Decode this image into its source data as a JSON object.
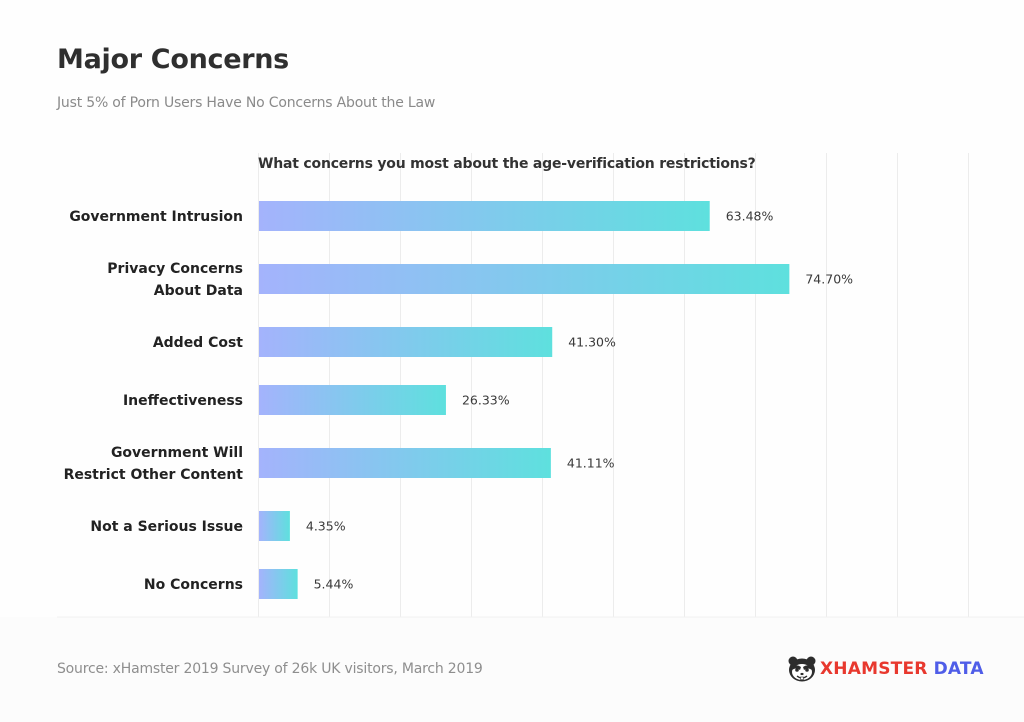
{
  "header": {
    "title": "Major Concerns",
    "subtitle": "Just 5% of Porn Users Have No Concerns About the Law"
  },
  "footer": {
    "source": "Source: xHamster 2019 Survey of 26k UK visitors, March 2019",
    "logo": {
      "icon": "hamster-face-icon",
      "brand": "XHAMSTER",
      "suffix": "DATA",
      "brand_color": "#e8382e",
      "suffix_color": "#4f5de8"
    }
  },
  "colors": {
    "bar_gradient_start": "#a4b3fc",
    "bar_gradient_end": "#5ee0de",
    "gridline": "#ececec",
    "label_text": "#222222",
    "value_text": "#3a3a3a"
  },
  "chart_data": {
    "type": "bar",
    "orientation": "horizontal",
    "title": "What concerns you most about the age-verification restrictions?",
    "xlabel": "",
    "ylabel": "",
    "categories": [
      [
        "Government Intrusion"
      ],
      [
        "Privacy Concerns",
        "About Data"
      ],
      [
        "Added Cost"
      ],
      [
        "Ineffectiveness"
      ],
      [
        "Government Will",
        "Restrict Other Content"
      ],
      [
        "Not a Serious Issue"
      ],
      [
        "No Concerns"
      ]
    ],
    "values": [
      63.48,
      74.7,
      41.3,
      26.33,
      41.11,
      4.35,
      5.44
    ],
    "value_labels": [
      "63.48%",
      "74.70%",
      "41.30%",
      "26.33%",
      "41.11%",
      "4.35%",
      "5.44%"
    ],
    "unit": "%",
    "xlim": [
      0,
      100
    ],
    "grid": true,
    "grid_step": 10,
    "tick_labels_visible": false,
    "legend": "none"
  }
}
